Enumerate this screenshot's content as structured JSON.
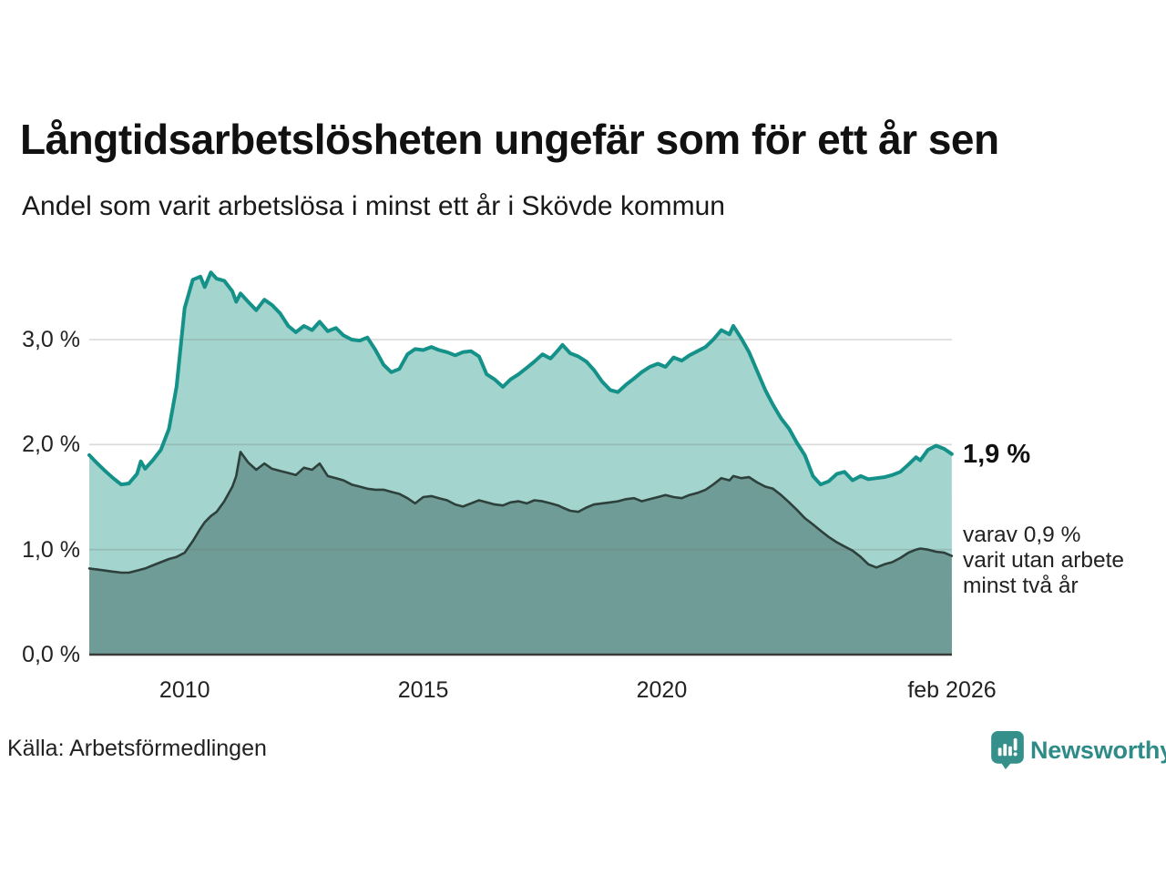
{
  "header": {
    "title": "Långtidsarbetslösheten ungefär som för ett år sen",
    "subtitle": "Andel som varit arbetslösa i minst ett år i Skövde kommun"
  },
  "footer": {
    "source": "Källa: Arbetsförmedlingen",
    "brand": "Newsworthy"
  },
  "colors": {
    "accent_teal": "#149189",
    "light_area": "#a3d4cd",
    "dark_area": "#6f9c96",
    "dark_line": "#2e403c",
    "axis_line": "#3a3a3a",
    "brand_teal": "#2e8b88",
    "logo_teal": "#35908b"
  },
  "chart_data": {
    "type": "area",
    "title": "Långtidsarbetslösheten ungefär som för ett år sen",
    "subtitle": "Andel som varit arbetslösa i minst ett år i Skövde kommun",
    "source": "Källa: Arbetsförmedlingen",
    "legend_position": "none",
    "grid": true,
    "x_axis": {
      "min": 2008,
      "max": 2026.083,
      "ticks": [
        {
          "label": "2010",
          "x": 2010
        },
        {
          "label": "2015",
          "x": 2015
        },
        {
          "label": "2020",
          "x": 2020
        },
        {
          "label": "feb 2026",
          "x": 2026.083
        }
      ]
    },
    "y_axis": {
      "min": 0,
      "max": 3.8,
      "unit": "%",
      "ticks": [
        {
          "label": "3,0 %",
          "value": 3
        },
        {
          "label": "2,0 %",
          "value": 2
        },
        {
          "label": "1,0 %",
          "value": 1
        },
        {
          "label": "0,0 %",
          "value": 0
        }
      ]
    },
    "annotations": {
      "end_value": "1,9 %",
      "note_lines": [
        "varav 0,9 %",
        "varit utan arbete",
        "minst två år"
      ]
    },
    "x": [
      2008.0,
      2008.17,
      2008.33,
      2008.5,
      2008.67,
      2008.83,
      2009.0,
      2009.08,
      2009.17,
      2009.33,
      2009.5,
      2009.67,
      2009.83,
      2010.0,
      2010.17,
      2010.33,
      2010.42,
      2010.55,
      2010.67,
      2010.83,
      2011.0,
      2011.08,
      2011.17,
      2011.33,
      2011.5,
      2011.67,
      2011.83,
      2012.0,
      2012.17,
      2012.33,
      2012.5,
      2012.67,
      2012.83,
      2013.0,
      2013.17,
      2013.33,
      2013.5,
      2013.67,
      2013.83,
      2014.0,
      2014.17,
      2014.33,
      2014.5,
      2014.67,
      2014.83,
      2015.0,
      2015.17,
      2015.33,
      2015.5,
      2015.67,
      2015.83,
      2016.0,
      2016.17,
      2016.33,
      2016.5,
      2016.67,
      2016.83,
      2017.0,
      2017.17,
      2017.33,
      2017.5,
      2017.67,
      2017.83,
      2017.92,
      2018.08,
      2018.25,
      2018.42,
      2018.58,
      2018.75,
      2018.92,
      2019.08,
      2019.25,
      2019.42,
      2019.58,
      2019.75,
      2019.92,
      2020.08,
      2020.25,
      2020.42,
      2020.58,
      2020.75,
      2020.92,
      2021.08,
      2021.25,
      2021.42,
      2021.5,
      2021.67,
      2021.83,
      2022.0,
      2022.17,
      2022.33,
      2022.5,
      2022.67,
      2022.83,
      2023.0,
      2023.17,
      2023.33,
      2023.5,
      2023.67,
      2023.83,
      2024.0,
      2024.17,
      2024.33,
      2024.5,
      2024.67,
      2024.83,
      2025.0,
      2025.17,
      2025.33,
      2025.42,
      2025.58,
      2025.75,
      2025.92,
      2026.08
    ],
    "series": [
      {
        "name": "Andel arbetslösa minst ett år",
        "color": "#149189",
        "fill": "#a3d4cd",
        "stroke_width": 4,
        "values": [
          1.9,
          1.82,
          1.75,
          1.68,
          1.62,
          1.63,
          1.72,
          1.84,
          1.77,
          1.85,
          1.95,
          2.15,
          2.55,
          3.3,
          3.57,
          3.6,
          3.5,
          3.64,
          3.58,
          3.56,
          3.46,
          3.36,
          3.44,
          3.36,
          3.28,
          3.38,
          3.33,
          3.25,
          3.13,
          3.07,
          3.13,
          3.09,
          3.17,
          3.08,
          3.11,
          3.04,
          3.0,
          2.99,
          3.02,
          2.9,
          2.76,
          2.69,
          2.72,
          2.86,
          2.91,
          2.9,
          2.93,
          2.9,
          2.88,
          2.85,
          2.88,
          2.89,
          2.84,
          2.67,
          2.62,
          2.55,
          2.62,
          2.67,
          2.73,
          2.79,
          2.86,
          2.82,
          2.9,
          2.95,
          2.87,
          2.84,
          2.79,
          2.71,
          2.6,
          2.52,
          2.5,
          2.57,
          2.63,
          2.69,
          2.74,
          2.77,
          2.74,
          2.83,
          2.8,
          2.85,
          2.89,
          2.93,
          3.0,
          3.09,
          3.05,
          3.13,
          3.01,
          2.88,
          2.7,
          2.52,
          2.38,
          2.25,
          2.15,
          2.02,
          1.9,
          1.7,
          1.62,
          1.65,
          1.72,
          1.74,
          1.66,
          1.7,
          1.67,
          1.68,
          1.69,
          1.71,
          1.74,
          1.81,
          1.88,
          1.85,
          1.95,
          1.99,
          1.96,
          1.91
        ]
      },
      {
        "name": "varav utan arbete minst två år",
        "color": "#2e403c",
        "fill": "#6f9c96",
        "stroke_width": 2.6,
        "values": [
          0.82,
          0.81,
          0.8,
          0.79,
          0.78,
          0.78,
          0.8,
          0.81,
          0.82,
          0.85,
          0.88,
          0.91,
          0.93,
          0.97,
          1.08,
          1.2,
          1.26,
          1.32,
          1.36,
          1.46,
          1.6,
          1.7,
          1.93,
          1.83,
          1.76,
          1.82,
          1.77,
          1.75,
          1.73,
          1.71,
          1.78,
          1.76,
          1.82,
          1.7,
          1.68,
          1.66,
          1.62,
          1.6,
          1.58,
          1.57,
          1.57,
          1.55,
          1.53,
          1.49,
          1.44,
          1.5,
          1.51,
          1.49,
          1.47,
          1.43,
          1.41,
          1.44,
          1.47,
          1.45,
          1.43,
          1.42,
          1.45,
          1.46,
          1.44,
          1.47,
          1.46,
          1.44,
          1.42,
          1.4,
          1.37,
          1.36,
          1.4,
          1.43,
          1.44,
          1.45,
          1.46,
          1.48,
          1.49,
          1.46,
          1.48,
          1.5,
          1.52,
          1.5,
          1.49,
          1.52,
          1.54,
          1.57,
          1.62,
          1.68,
          1.66,
          1.7,
          1.68,
          1.69,
          1.64,
          1.6,
          1.58,
          1.52,
          1.45,
          1.38,
          1.3,
          1.24,
          1.18,
          1.12,
          1.07,
          1.03,
          0.99,
          0.93,
          0.86,
          0.83,
          0.86,
          0.88,
          0.92,
          0.97,
          1.0,
          1.01,
          1.0,
          0.98,
          0.97,
          0.94
        ]
      }
    ]
  }
}
